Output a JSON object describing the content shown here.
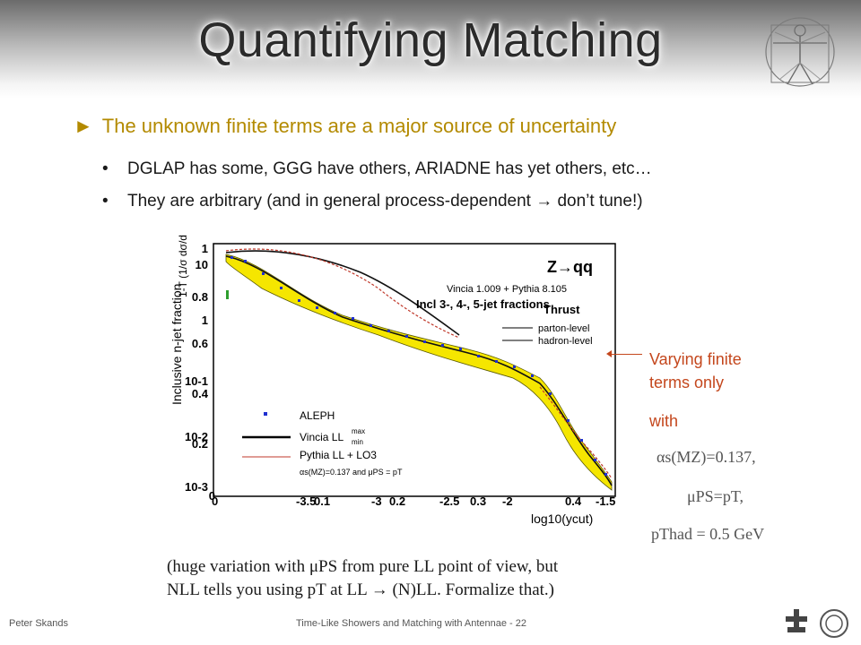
{
  "slide": {
    "title": "Quantifying Matching",
    "bullet_main": "The unknown finite terms are a major source of uncertainty",
    "bullet_sub1": "DGLAP has some, GGG have others, ARIADNE has yet others, etc…",
    "bullet_sub2": "They are arbitrary (and in general process-dependent  → don’t tune!)",
    "annotation_line1": "Varying finite",
    "annotation_line2": "terms only",
    "annotation_with": "with",
    "param_alpha": "αs(MZ)=0.137,",
    "param_mu": "μPS=pT,",
    "param_pthad": "pThad = 0.5 GeV",
    "note_line1": "(huge variation with μPS from pure LL point of view, but",
    "note_line2": "NLL tells you using pT at LL → (N)LL. Formalize that.)",
    "footer_author": "Peter Skands",
    "footer_center": "Time-Like Showers and Matching with Antennae - 22"
  },
  "plot": {
    "header": "Z→qq",
    "generator": "Vincia 1.009 + Pythia 8.105",
    "observable": "Incl 3-, 4-, 5-jet fractions",
    "ylabel": "Inclusive n-jet fraction",
    "ylabel_alt": "1-T (1/σ dσ/d(1-T)",
    "xlabel": "log10(ycut)",
    "thrust_label": "Thrust",
    "parton_label": "parton-level",
    "hadron_label": "hadron-level",
    "legend": {
      "aleph": "ALEPH",
      "vincia": "Vincia LL",
      "vincia_sup": "max",
      "vincia_sub": "min",
      "pythia": "Pythia LL + LO3",
      "alpha_note": "αs(MZ)=0.137 and μPS = pT"
    },
    "yticks_left": [
      "1",
      "0.8",
      "0.6",
      "0.4",
      "0.2",
      "0"
    ],
    "yticks_log": [
      "10",
      "1",
      "10-1",
      "10-2",
      "10-3"
    ],
    "xticks_a": [
      "-3.5",
      "-3",
      "-2.5",
      "-2",
      "-1.5"
    ],
    "xticks_b": [
      "0",
      "0.1",
      "0.2",
      "0.3",
      "0.4"
    ],
    "colors": {
      "band": "#f5e600",
      "data": "#1f2fd0",
      "pythia": "#c0392b"
    }
  }
}
